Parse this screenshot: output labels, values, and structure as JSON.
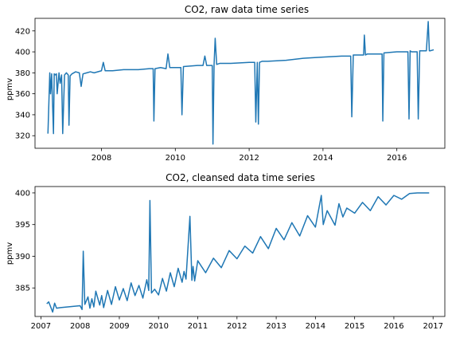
{
  "chart_data": [
    {
      "type": "line",
      "title": "CO2, raw data time series",
      "xlabel": "",
      "ylabel": "ppmv",
      "xlim": [
        2006.2,
        2017.3
      ],
      "ylim": [
        308,
        432
      ],
      "xticks": [
        2008,
        2010,
        2012,
        2014,
        2016
      ],
      "yticks": [
        320,
        340,
        360,
        380,
        400,
        420
      ],
      "grid": false,
      "color": "#1f77b4",
      "series": [
        {
          "x": [
            2006.55,
            2006.6,
            2006.62,
            2006.65,
            2006.7,
            2006.72,
            2006.75,
            2006.78,
            2006.8,
            2006.85,
            2006.88,
            2006.92,
            2006.95,
            2007.0,
            2007.05,
            2007.1,
            2007.12,
            2007.15,
            2007.2,
            2007.3,
            2007.4,
            2007.45,
            2007.5,
            2007.6,
            2007.7,
            2007.8,
            2008.0,
            2008.05,
            2008.1,
            2008.3,
            2008.6,
            2009.0,
            2009.3,
            2009.4,
            2009.42,
            2009.45,
            2009.6,
            2009.75,
            2009.8,
            2009.85,
            2010.0,
            2010.15,
            2010.18,
            2010.22,
            2010.6,
            2010.75,
            2010.8,
            2010.85,
            2011.0,
            2011.02,
            2011.05,
            2011.08,
            2011.12,
            2011.2,
            2011.5,
            2012.0,
            2012.15,
            2012.18,
            2012.22,
            2012.25,
            2012.28,
            2012.35,
            2012.5,
            2013.0,
            2013.5,
            2014.0,
            2014.5,
            2014.75,
            2014.78,
            2014.82,
            2015.0,
            2015.1,
            2015.12,
            2015.15,
            2015.2,
            2015.6,
            2015.62,
            2015.65,
            2016.0,
            2016.3,
            2016.33,
            2016.36,
            2016.4,
            2016.55,
            2016.58,
            2016.62,
            2016.8,
            2016.85,
            2016.88,
            2016.9,
            2017.0
          ],
          "y": [
            322,
            380,
            360,
            379,
            322,
            379,
            378,
            379,
            360,
            380,
            370,
            378,
            322,
            378,
            380,
            378,
            330,
            377,
            379,
            381,
            380,
            367,
            379,
            380,
            381,
            380,
            382,
            390,
            382,
            382,
            383,
            383,
            384,
            384,
            334,
            384,
            385,
            384,
            398,
            385,
            385,
            385,
            340,
            386,
            387,
            387,
            396,
            387,
            387,
            312,
            388,
            413,
            388,
            389,
            389,
            390,
            390,
            333,
            390,
            331,
            390,
            391,
            391,
            392,
            394,
            395,
            396,
            396,
            338,
            397,
            397,
            397,
            416,
            397,
            398,
            398,
            334,
            399,
            400,
            400,
            336,
            401,
            400,
            400,
            336,
            401,
            401,
            429,
            401,
            401,
            402
          ]
        }
      ]
    },
    {
      "type": "line",
      "title": "CO2, cleansed data time series",
      "xlabel": "",
      "ylabel": "ppmv",
      "xlim": [
        2006.85,
        2017.3
      ],
      "ylim": [
        380.5,
        401
      ],
      "xticks": [
        2007,
        2008,
        2009,
        2010,
        2011,
        2012,
        2013,
        2014,
        2015,
        2016,
        2017
      ],
      "yticks": [
        385,
        390,
        395,
        400
      ],
      "grid": false,
      "color": "#1f77b4",
      "series": [
        {
          "x": [
            2007.15,
            2007.2,
            2007.3,
            2007.35,
            2007.4,
            2007.5,
            2008.0,
            2008.05,
            2008.08,
            2008.12,
            2008.2,
            2008.25,
            2008.3,
            2008.35,
            2008.4,
            2008.5,
            2008.55,
            2008.6,
            2008.7,
            2008.8,
            2008.9,
            2009.0,
            2009.1,
            2009.2,
            2009.3,
            2009.4,
            2009.5,
            2009.6,
            2009.7,
            2009.75,
            2009.78,
            2009.82,
            2009.9,
            2010.0,
            2010.1,
            2010.2,
            2010.3,
            2010.4,
            2010.5,
            2010.6,
            2010.65,
            2010.7,
            2010.8,
            2010.85,
            2010.88,
            2010.92,
            2011.0,
            2011.2,
            2011.4,
            2011.6,
            2011.8,
            2012.0,
            2012.2,
            2012.4,
            2012.6,
            2012.8,
            2013.0,
            2013.2,
            2013.4,
            2013.6,
            2013.8,
            2014.0,
            2014.15,
            2014.2,
            2014.3,
            2014.5,
            2014.6,
            2014.7,
            2014.8,
            2015.0,
            2015.2,
            2015.4,
            2015.6,
            2015.8,
            2016.0,
            2016.2,
            2016.4,
            2016.6,
            2016.8,
            2016.9
          ],
          "y": [
            382.5,
            382.8,
            381.2,
            382.6,
            381.8,
            381.9,
            382.2,
            381.6,
            390.8,
            382.4,
            383.6,
            381.8,
            383.3,
            382.0,
            384.5,
            382.3,
            383.8,
            381.9,
            384.6,
            382.4,
            385.2,
            383.1,
            384.9,
            383.0,
            385.8,
            383.8,
            385.4,
            383.4,
            386.3,
            384.6,
            398.8,
            384.2,
            384.8,
            383.9,
            386.5,
            384.5,
            387.4,
            385.2,
            388.1,
            385.9,
            387.6,
            386.4,
            396.3,
            386.2,
            388.4,
            386.1,
            389.3,
            387.4,
            389.7,
            388.2,
            390.9,
            389.6,
            391.6,
            390.5,
            393.1,
            391.2,
            394.4,
            392.6,
            395.3,
            393.2,
            396.4,
            394.6,
            399.6,
            395.0,
            397.2,
            394.9,
            398.3,
            396.2,
            397.6,
            396.8,
            398.5,
            397.2,
            399.4,
            398.1,
            399.6,
            399.0,
            399.9,
            400.0,
            400.0,
            400.0
          ]
        }
      ]
    }
  ]
}
